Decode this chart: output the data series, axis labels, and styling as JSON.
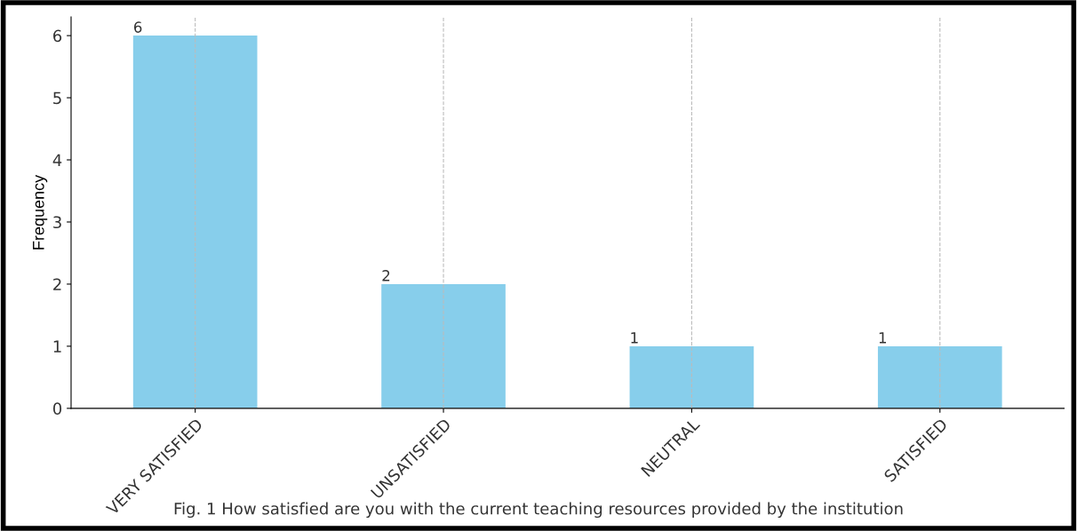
{
  "chart_data": {
    "type": "bar",
    "ylabel": "Frequency",
    "categories": [
      "VERY SATISFIED",
      "UNSATISFIED",
      "NEUTRAL",
      "SATISFIED"
    ],
    "values": [
      6,
      2,
      1,
      1
    ],
    "color": "#87ceeb",
    "ylim": [
      0,
      6.3
    ],
    "yticks": [
      0,
      1,
      2,
      3,
      4,
      5,
      6
    ],
    "grid": "x",
    "data_labels": true,
    "annotations": [
      "Fig. 1 How satisfied are you with the current teaching resources provided by the institution"
    ]
  }
}
